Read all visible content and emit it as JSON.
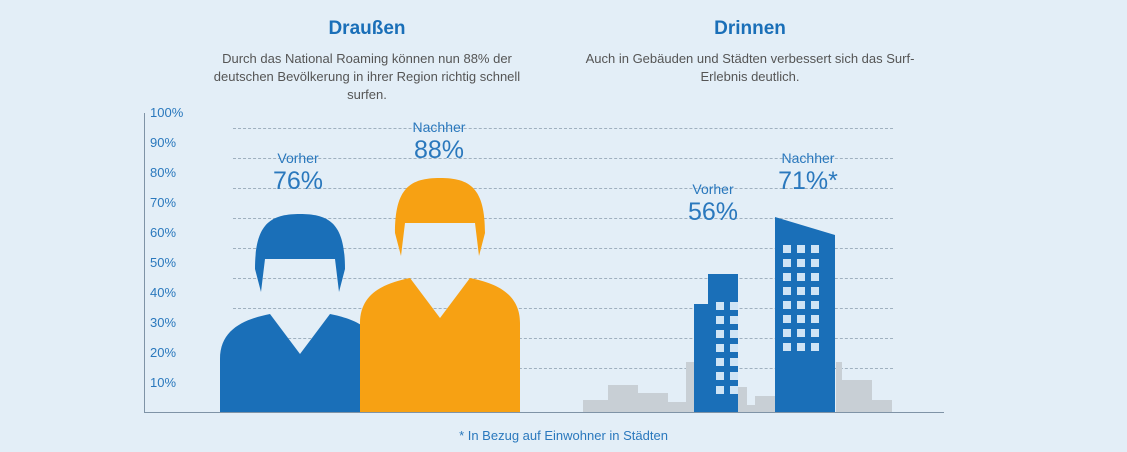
{
  "left": {
    "title": "Draußen",
    "description": "Durch das National Roaming können nun 88% der deutschen Bevölkerung in ihrer Region richtig schnell surfen."
  },
  "right": {
    "title": "Drinnen",
    "description": "Auch in Gebäuden und Städten verbessert sich das Surf-Erlebnis deutlich."
  },
  "footnote": "* In Bezug auf Einwohner in Städten",
  "colors": {
    "blue": "#1a6fb8",
    "orange": "#f7a113",
    "gray": "#c8cfd5",
    "text_blue": "#2a78bd"
  },
  "chart_data": {
    "type": "bar",
    "y_ticks": [
      "10%",
      "20%",
      "30%",
      "40%",
      "50%",
      "60%",
      "70%",
      "80%",
      "90%",
      "100%"
    ],
    "ylim": [
      0,
      100
    ],
    "grid": true,
    "groups": [
      {
        "name": "Draußen",
        "bars": [
          {
            "label": "Vorher",
            "display": "76%",
            "value": 76,
            "icon": "person-blue",
            "color": "#1a6fb8"
          },
          {
            "label": "Nachher",
            "display": "88%",
            "value": 88,
            "icon": "person-orange",
            "color": "#f7a113"
          }
        ]
      },
      {
        "name": "Drinnen",
        "bars": [
          {
            "label": "Vorher",
            "display": "56%",
            "value": 56,
            "icon": "building-short",
            "color": "#1a6fb8"
          },
          {
            "label": "Nachher",
            "display": "71%*",
            "value": 71,
            "icon": "building-tall",
            "color": "#1a6fb8"
          }
        ]
      }
    ]
  }
}
